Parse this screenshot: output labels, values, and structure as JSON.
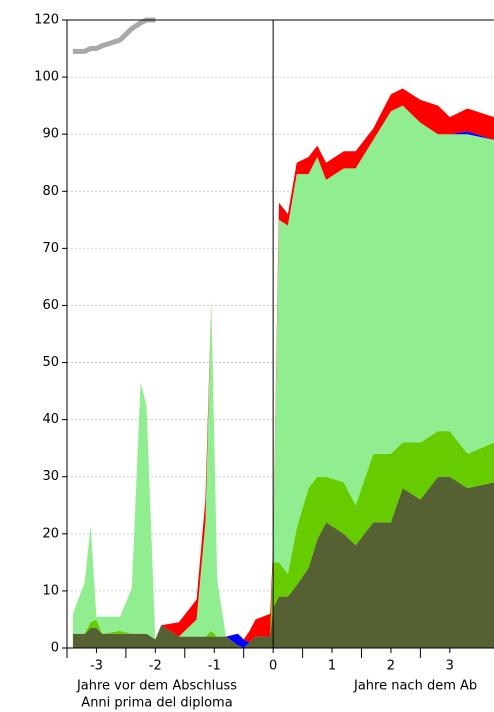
{
  "chart_data": {
    "type": "stacked-area",
    "x": [
      -3.4,
      -3.2,
      -3.1,
      -3.0,
      -2.9,
      -2.6,
      -2.4,
      -2.25,
      -2.15,
      -2.0,
      -1.9,
      -1.6,
      -1.3,
      -1.15,
      -1.05,
      -0.95,
      -0.8,
      -0.6,
      -0.5,
      -0.4,
      -0.3,
      -0.05,
      0.0,
      0.1,
      0.25,
      0.4,
      0.6,
      0.75,
      0.9,
      1.2,
      1.4,
      1.7,
      2.0,
      2.2,
      2.5,
      2.8,
      3.0,
      3.3,
      3.75
    ],
    "series": [
      {
        "color": "#566133",
        "values": [
          2.5,
          2.5,
          3.5,
          3.5,
          2.5,
          2.5,
          2.5,
          2.5,
          2.5,
          1.5,
          4,
          2,
          2,
          2,
          2,
          2,
          2,
          0.5,
          0,
          1,
          2,
          2,
          7,
          9,
          9,
          11,
          14,
          19,
          22,
          20,
          18,
          22,
          22,
          28,
          26,
          30,
          30,
          28,
          29
        ]
      },
      {
        "color": "#66cc00",
        "values": [
          0,
          0,
          1,
          1.5,
          0,
          0.5,
          0,
          0,
          0,
          0,
          0,
          0,
          0,
          0,
          1,
          0,
          0,
          0,
          0,
          0,
          0,
          0,
          8,
          6,
          4,
          10,
          14,
          11,
          8,
          9,
          7,
          12,
          12,
          8,
          10,
          8,
          8,
          6,
          7
        ]
      },
      {
        "color": "#90ee90",
        "values": [
          3.5,
          9,
          17,
          0.5,
          3,
          2.5,
          8,
          44,
          40,
          0,
          0,
          0,
          3,
          20,
          58,
          10,
          0,
          0,
          0,
          0,
          0,
          0,
          2,
          60,
          61,
          62,
          55,
          56,
          52,
          55,
          59,
          55,
          60,
          59,
          56,
          52,
          52,
          56,
          53
        ]
      },
      {
        "color": "#0000ff",
        "values": [
          0,
          0,
          0,
          0,
          0,
          0,
          0,
          0,
          0,
          0,
          0,
          0,
          0,
          0,
          0,
          0,
          0,
          2,
          1.5,
          0,
          0,
          0,
          0,
          0,
          0,
          0,
          0,
          0,
          0,
          0,
          0,
          0,
          0,
          0,
          0,
          0,
          0,
          0.5,
          0
        ]
      },
      {
        "color": "#ff0000",
        "values": [
          0,
          0,
          0,
          0,
          0,
          0,
          0,
          0,
          0,
          0,
          0,
          2.5,
          3.5,
          4,
          0,
          0,
          0,
          0,
          0,
          2,
          3,
          4,
          1,
          3,
          2,
          2,
          3,
          2,
          3,
          3,
          3,
          2,
          3,
          3,
          4,
          5,
          3,
          4,
          4
        ]
      }
    ],
    "total_line": {
      "color": "#a9a9a9",
      "values": [
        109,
        109,
        110,
        110,
        111,
        113,
        117,
        119,
        120,
        120,
        null,
        null,
        null,
        null,
        null,
        null,
        null,
        null,
        null,
        null,
        null,
        null,
        null,
        null,
        null,
        null,
        null,
        null,
        null,
        null,
        null,
        null,
        null,
        null,
        null,
        null,
        null,
        null,
        null
      ]
    },
    "xlim": [
      -3.5,
      3.75
    ],
    "xticks": [
      -3,
      -2,
      -1,
      0,
      1,
      2,
      3
    ],
    "ylim": [
      0,
      120
    ],
    "yticks": [
      0,
      10,
      20,
      30,
      40,
      50,
      60,
      70,
      80,
      90,
      100,
      120
    ],
    "vline": 0,
    "grid": true,
    "annotations": [
      "Jahre vor dem Abschluss",
      "Anni prima del diploma",
      "Jahre nach dem Ab"
    ]
  }
}
